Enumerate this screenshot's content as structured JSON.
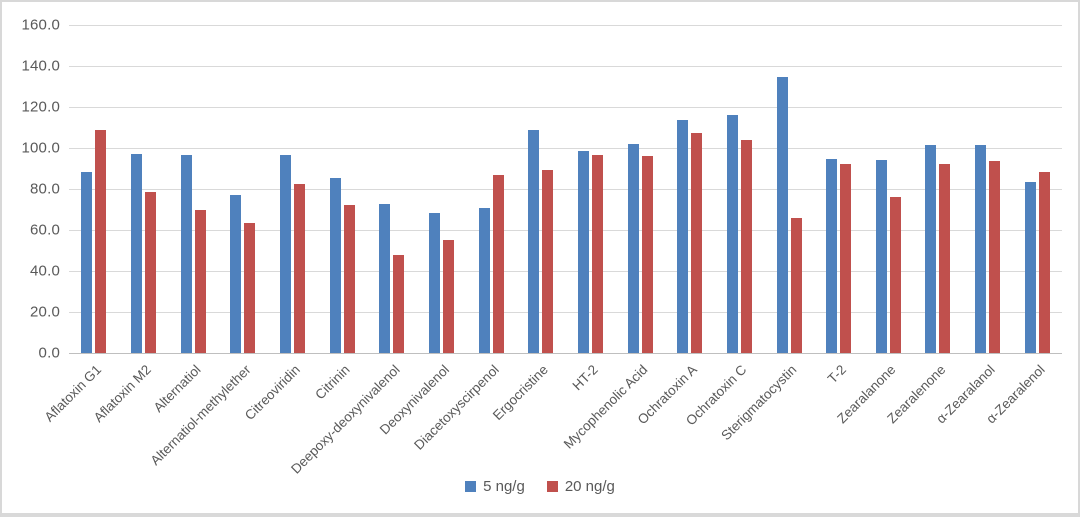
{
  "chart_data": {
    "type": "bar",
    "title": "",
    "xlabel": "",
    "ylabel": "",
    "categories": [
      "Aflatoxin G1",
      "Aflatoxin M2",
      "Alternatiol",
      "Alternatiol-methylether",
      "Citreoviridin",
      "Citrinin",
      "Deepoxy-deoxynivalenol",
      "Deoxynivalenol",
      "Diacetoxyscirpenol",
      "Ergocristine",
      "HT-2",
      "Mycophenolic Acid",
      "Ochratoxin A",
      "Ochratoxin C",
      "Sterigmatocystin",
      "T-2",
      "Zearalanone",
      "Zearalenone",
      "α-Zearalanol",
      "α-Zearalenol"
    ],
    "series": [
      {
        "name": "5 ng/g",
        "color": "#4F81BD",
        "values": [
          88.5,
          97.0,
          96.5,
          77.0,
          96.5,
          85.5,
          72.5,
          68.5,
          70.5,
          109.0,
          98.5,
          102.0,
          113.5,
          116.0,
          134.5,
          94.5,
          94.0,
          101.5,
          101.5,
          83.5
        ]
      },
      {
        "name": "20 ng/g",
        "color": "#C0504D",
        "values": [
          109.0,
          78.5,
          70.0,
          63.5,
          82.5,
          72.0,
          48.0,
          55.0,
          87.0,
          89.5,
          96.5,
          96.0,
          107.5,
          104.0,
          66.0,
          92.0,
          76.0,
          92.0,
          93.5,
          88.5
        ]
      }
    ],
    "ylim": [
      0,
      160
    ],
    "yticks": [
      0,
      20,
      40,
      60,
      80,
      100,
      120,
      140,
      160
    ],
    "ytick_decimals": 1,
    "grid": true,
    "legend_position": "bottom"
  },
  "colors": {
    "background": "#FFFFFF",
    "gridline": "#D9D9D9",
    "axis_line": "#BFBFBF",
    "axis_text": "#595959",
    "frame_border": "#D8D8D8",
    "series_blue": "#4F81BD",
    "series_red": "#C0504D"
  }
}
